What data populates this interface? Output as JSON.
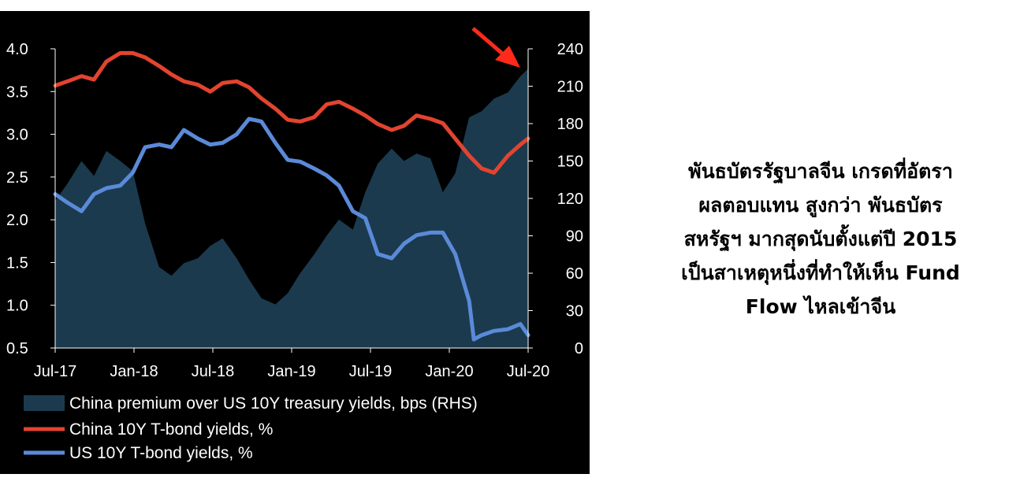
{
  "caption": {
    "lines": [
      "พันธบัตรรัฐบาลจีน เกรดที่อัตรา",
      "ผลตอบแทน สูงกว่า พันธบัตร",
      "สหรัฐฯ มากสุดนับตั้งแต่ปี 2015",
      "เป็นสาเหตุหนึ่งที่ทำให้เห็น Fund",
      "Flow ไหลเข้าจีน"
    ]
  },
  "chart_data": {
    "type": "line",
    "title": "",
    "x_ticks": [
      "Jul-17",
      "Jan-18",
      "Jul-18",
      "Jan-19",
      "Jul-19",
      "Jan-20",
      "Jul-20"
    ],
    "x_range": [
      2017.5,
      2020.55
    ],
    "y_left": {
      "ticks": [
        "4.0",
        "3.5",
        "3.0",
        "2.5",
        "2.0",
        "1.5",
        "1.0",
        "0.5"
      ],
      "range": [
        0.5,
        4.0
      ]
    },
    "y_right": {
      "ticks": [
        "240",
        "210",
        "180",
        "150",
        "120",
        "90",
        "60",
        "30",
        "0"
      ],
      "range": [
        0,
        240
      ]
    },
    "grid": false,
    "legend_position": "bottom",
    "colors": {
      "premium": "#1b3a4e",
      "china": "#e2442f",
      "us": "#5a8ad8",
      "arrow": "#ff2a1a"
    },
    "annotation": "red-arrow-pointing-to-latest-premium",
    "series": [
      {
        "name": "China premium over US 10Y treasury yields, bps (RHS)",
        "axis": "right",
        "kind": "area",
        "x": [
          2017.5,
          2017.58,
          2017.67,
          2017.75,
          2017.83,
          2017.92,
          2018.0,
          2018.08,
          2018.17,
          2018.25,
          2018.33,
          2018.42,
          2018.5,
          2018.58,
          2018.67,
          2018.75,
          2018.83,
          2018.92,
          2019.0,
          2019.08,
          2019.17,
          2019.25,
          2019.33,
          2019.42,
          2019.5,
          2019.58,
          2019.67,
          2019.75,
          2019.83,
          2019.92,
          2020.0,
          2020.08,
          2020.17,
          2020.25,
          2020.33,
          2020.42,
          2020.5,
          2020.55
        ],
        "values": [
          118,
          132,
          150,
          138,
          158,
          150,
          142,
          100,
          65,
          58,
          68,
          72,
          82,
          88,
          72,
          55,
          40,
          35,
          44,
          60,
          75,
          90,
          103,
          95,
          125,
          148,
          160,
          150,
          156,
          152,
          125,
          140,
          185,
          190,
          200,
          205,
          218,
          224
        ]
      },
      {
        "name": "China 10Y T-bond yields, %",
        "axis": "left",
        "kind": "line",
        "x": [
          2017.5,
          2017.58,
          2017.67,
          2017.75,
          2017.83,
          2017.92,
          2018.0,
          2018.08,
          2018.17,
          2018.25,
          2018.33,
          2018.42,
          2018.5,
          2018.58,
          2018.67,
          2018.75,
          2018.83,
          2018.92,
          2019.0,
          2019.08,
          2019.17,
          2019.25,
          2019.33,
          2019.42,
          2019.5,
          2019.58,
          2019.67,
          2019.75,
          2019.83,
          2019.92,
          2020.0,
          2020.08,
          2020.17,
          2020.25,
          2020.33,
          2020.42,
          2020.5,
          2020.55
        ],
        "values": [
          3.57,
          3.62,
          3.68,
          3.64,
          3.85,
          3.95,
          3.95,
          3.9,
          3.8,
          3.7,
          3.62,
          3.58,
          3.5,
          3.6,
          3.62,
          3.55,
          3.42,
          3.3,
          3.17,
          3.15,
          3.2,
          3.35,
          3.38,
          3.3,
          3.22,
          3.12,
          3.05,
          3.1,
          3.22,
          3.18,
          3.13,
          2.95,
          2.75,
          2.6,
          2.55,
          2.75,
          2.88,
          2.95
        ]
      },
      {
        "name": "US 10Y T-bond yields, %",
        "axis": "left",
        "kind": "line",
        "x": [
          2017.5,
          2017.58,
          2017.67,
          2017.75,
          2017.83,
          2017.92,
          2018.0,
          2018.08,
          2018.17,
          2018.25,
          2018.33,
          2018.42,
          2018.5,
          2018.58,
          2018.67,
          2018.75,
          2018.83,
          2018.92,
          2019.0,
          2019.08,
          2019.17,
          2019.25,
          2019.33,
          2019.42,
          2019.5,
          2019.58,
          2019.67,
          2019.75,
          2019.83,
          2019.92,
          2020.0,
          2020.08,
          2020.17,
          2020.2,
          2020.25,
          2020.33,
          2020.42,
          2020.5,
          2020.55
        ],
        "values": [
          2.3,
          2.2,
          2.1,
          2.3,
          2.37,
          2.4,
          2.55,
          2.85,
          2.88,
          2.85,
          3.05,
          2.95,
          2.88,
          2.9,
          3.0,
          3.18,
          3.15,
          2.9,
          2.7,
          2.68,
          2.6,
          2.52,
          2.4,
          2.1,
          2.02,
          1.6,
          1.55,
          1.72,
          1.82,
          1.85,
          1.85,
          1.6,
          1.05,
          0.6,
          0.65,
          0.7,
          0.72,
          0.78,
          0.65
        ]
      }
    ]
  }
}
